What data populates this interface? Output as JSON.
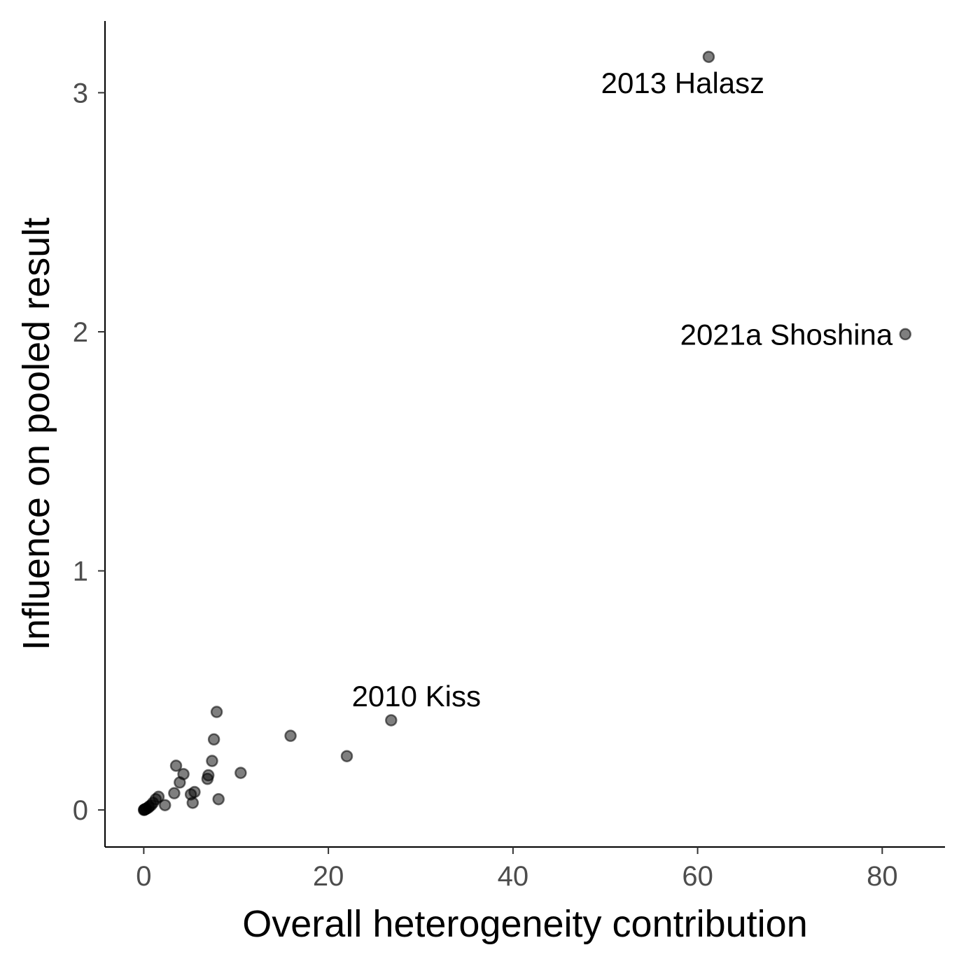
{
  "chart_data": {
    "type": "scatter",
    "xlabel": "Overall heterogeneity contribution",
    "ylabel": "Influence on pooled result",
    "xlim": [
      -4.2,
      86.8
    ],
    "ylim": [
      -0.155,
      3.3
    ],
    "x_ticks": [
      0,
      20,
      40,
      60,
      80
    ],
    "y_ticks": [
      0,
      1,
      2,
      3
    ],
    "x_tick_labels": [
      "0",
      "20",
      "40",
      "60",
      "80"
    ],
    "y_tick_labels": [
      "0",
      "1",
      "2",
      "3"
    ],
    "grid": false,
    "legend": "none",
    "point_color": "#000000",
    "point_alpha": 0.5,
    "points": [
      {
        "x": 61.2,
        "y": 3.15
      },
      {
        "x": 82.5,
        "y": 1.99
      },
      {
        "x": 26.8,
        "y": 0.375
      },
      {
        "x": 15.9,
        "y": 0.31
      },
      {
        "x": 22.0,
        "y": 0.225
      },
      {
        "x": 10.5,
        "y": 0.155
      },
      {
        "x": 7.9,
        "y": 0.41
      },
      {
        "x": 7.6,
        "y": 0.295
      },
      {
        "x": 7.4,
        "y": 0.205
      },
      {
        "x": 7.0,
        "y": 0.145
      },
      {
        "x": 6.9,
        "y": 0.13
      },
      {
        "x": 8.1,
        "y": 0.045
      },
      {
        "x": 3.5,
        "y": 0.185
      },
      {
        "x": 4.3,
        "y": 0.15
      },
      {
        "x": 3.9,
        "y": 0.115
      },
      {
        "x": 3.3,
        "y": 0.07
      },
      {
        "x": 5.5,
        "y": 0.075
      },
      {
        "x": 5.1,
        "y": 0.065
      },
      {
        "x": 5.3,
        "y": 0.03
      },
      {
        "x": 2.3,
        "y": 0.02
      },
      {
        "x": 1.6,
        "y": 0.055
      },
      {
        "x": 1.3,
        "y": 0.045
      },
      {
        "x": 1.0,
        "y": 0.03
      },
      {
        "x": 0.8,
        "y": 0.02
      },
      {
        "x": 0.6,
        "y": 0.015
      },
      {
        "x": 0.5,
        "y": 0.01
      },
      {
        "x": 0.3,
        "y": 0.006
      },
      {
        "x": 0.2,
        "y": 0.004
      },
      {
        "x": 0.1,
        "y": 0.002
      },
      {
        "x": 0.05,
        "y": 0.001
      },
      {
        "x": 0.02,
        "y": 0.0
      }
    ],
    "annotations": [
      {
        "label": "2013 Halasz",
        "x": 61.2,
        "y": 3.15,
        "anchor": "below"
      },
      {
        "label": "2021a Shoshina",
        "x": 82.5,
        "y": 1.99,
        "anchor": "left"
      },
      {
        "label": "2010 Kiss",
        "x": 26.8,
        "y": 0.375,
        "anchor": "above-left"
      }
    ]
  }
}
